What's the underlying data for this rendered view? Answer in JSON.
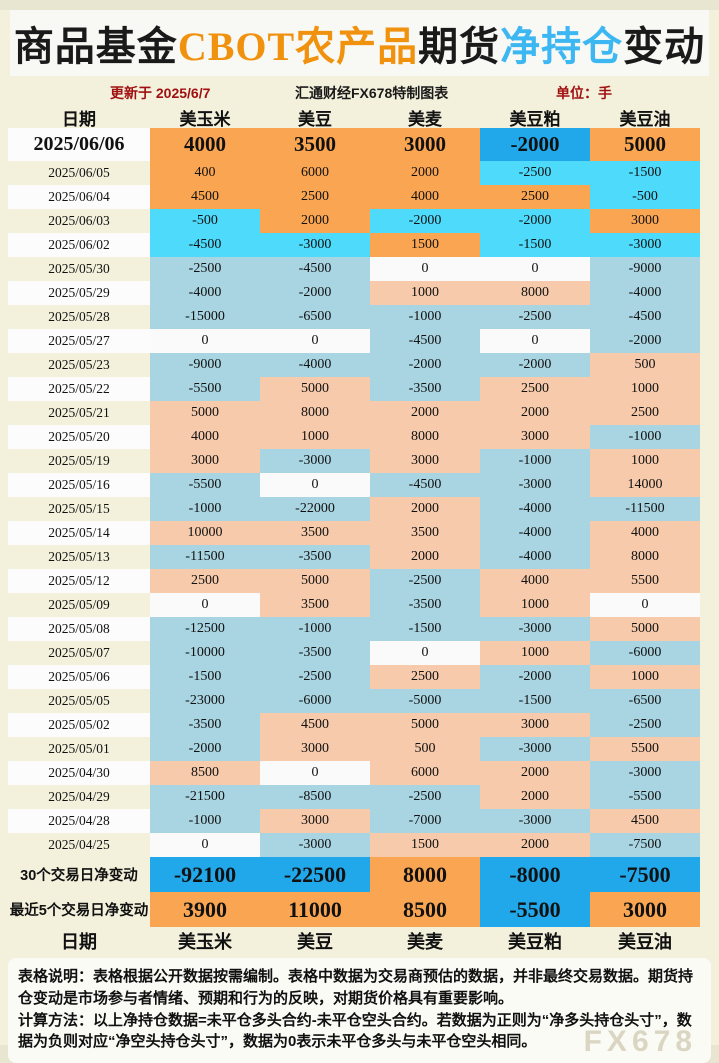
{
  "title": {
    "segments": [
      {
        "text": "商品基金",
        "color": "#1A1A1A"
      },
      {
        "text": "CBOT农产品",
        "color": "#F0920E"
      },
      {
        "text": "期货",
        "color": "#1A1A1A"
      },
      {
        "text": "净持仓",
        "color": "#3DB7F2"
      },
      {
        "text": "变动",
        "color": "#1A1A1A"
      }
    ]
  },
  "subtitle": {
    "updated": "更新于 2025/6/7",
    "source": "汇通财经FX678特制图表",
    "unit": "单位：手"
  },
  "columns": [
    "日期",
    "美玉米",
    "美豆",
    "美麦",
    "美豆粕",
    "美豆油"
  ],
  "chart_data": {
    "type": "table",
    "title": "商品基金CBOT农产品期货净持仓变动",
    "unit": "手",
    "dates": [
      "2025/06/06",
      "2025/06/05",
      "2025/06/04",
      "2025/06/03",
      "2025/06/02",
      "2025/05/30",
      "2025/05/29",
      "2025/05/28",
      "2025/05/27",
      "2025/05/23",
      "2025/05/22",
      "2025/05/21",
      "2025/05/20",
      "2025/05/19",
      "2025/05/16",
      "2025/05/15",
      "2025/05/14",
      "2025/05/13",
      "2025/05/12",
      "2025/05/09",
      "2025/05/08",
      "2025/05/07",
      "2025/05/06",
      "2025/05/05",
      "2025/05/02",
      "2025/05/01",
      "2025/04/30",
      "2025/04/29",
      "2025/04/28",
      "2025/04/25"
    ],
    "series": [
      {
        "name": "美玉米",
        "values": [
          4000,
          400,
          4500,
          -500,
          -4500,
          -2500,
          -4000,
          -15000,
          0,
          -9000,
          -5500,
          5000,
          4000,
          3000,
          -5500,
          -1000,
          10000,
          -11500,
          2500,
          0,
          -12500,
          -10000,
          -1500,
          -23000,
          -3500,
          -2000,
          8500,
          -21500,
          -1000,
          0
        ]
      },
      {
        "name": "美豆",
        "values": [
          3500,
          6000,
          2500,
          2000,
          -3000,
          -4500,
          -2000,
          -6500,
          0,
          -4000,
          5000,
          8000,
          1000,
          -3000,
          0,
          -22000,
          3500,
          -3500,
          5000,
          3500,
          -1000,
          -3500,
          -2500,
          -6000,
          4500,
          3000,
          0,
          -8500,
          3000,
          -3000
        ]
      },
      {
        "name": "美麦",
        "values": [
          3000,
          2000,
          4000,
          -2000,
          1500,
          0,
          1000,
          -1000,
          -4500,
          -2000,
          -3500,
          2000,
          8000,
          3000,
          -4500,
          2000,
          3500,
          2000,
          -2500,
          -3500,
          -1500,
          0,
          2500,
          -5000,
          5000,
          500,
          6000,
          -2500,
          -7000,
          1500
        ]
      },
      {
        "name": "美豆粕",
        "values": [
          -2000,
          -2500,
          2500,
          -2000,
          -1500,
          0,
          8000,
          -2500,
          0,
          -2000,
          2500,
          2000,
          3000,
          -1000,
          -3000,
          -4000,
          -4000,
          -4000,
          4000,
          1000,
          -3000,
          1000,
          -2000,
          -1500,
          3000,
          -3000,
          2000,
          2000,
          -3000,
          2000
        ]
      },
      {
        "name": "美豆油",
        "values": [
          5000,
          -1500,
          -500,
          3000,
          -3000,
          -9000,
          -4000,
          -4500,
          -2000,
          500,
          1000,
          2500,
          -1000,
          1000,
          14000,
          -11500,
          4000,
          8000,
          5500,
          0,
          5000,
          -6000,
          1000,
          -6500,
          -2500,
          5500,
          -3000,
          -5500,
          4500,
          -7500
        ]
      }
    ],
    "legend_position": "top",
    "grid": false
  },
  "summary": [
    {
      "label": "30个交易日净变动",
      "values": [
        -92100,
        -22500,
        8000,
        -8000,
        -7500
      ]
    },
    {
      "label": "最近5个交易日净变动",
      "values": [
        3900,
        11000,
        8500,
        -5500,
        3000
      ]
    }
  ],
  "notes": [
    {
      "lead": "表格说明：",
      "text": "表格根据公开数据按需编制。表格中数据为交易商预估的数据，并非最终交易数据。期货持仓变动是市场参与者情绪、预期和行为的反映，对期货价格具有重要影响。"
    },
    {
      "lead": "计算方法：",
      "text": "以上净持仓数据=未平仓多头合约-未平仓空头合约。若数据为正则为“净多头持仓头寸”，数据为负则对应“净空头持仓头寸”，数据为0表示未平仓多头与未平仓空头相同。"
    }
  ],
  "watermark": "FX678",
  "colors": {
    "page_bg": "#F3F1DC",
    "title_orange": "#F0920E",
    "title_blue": "#3DB7F2",
    "subtitle_red": "#A01010",
    "bright_positive": "#FAA551",
    "bright_negative": "#4EDAFB",
    "deep_negative": "#21A8EB",
    "muted_positive": "#F6CAAA",
    "muted_negative": "#A9D5E2",
    "zero_cell": "#FAFAFA"
  }
}
